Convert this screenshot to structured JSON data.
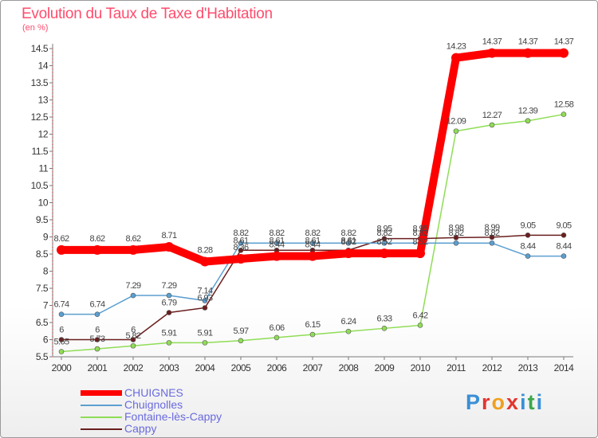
{
  "header": {
    "title": "Evolution du Taux de Taxe d'Habitation",
    "unit": "(en %)"
  },
  "logo": {
    "text": "Proxiti",
    "colors": [
      "#3a8fd6",
      "#e3342f",
      "#f0a020",
      "#e3342f",
      "#3a8fd6",
      "#3aa84a",
      "#3a8fd6"
    ]
  },
  "chart_data": {
    "type": "line",
    "x": [
      "2000",
      "2001",
      "2002",
      "2003",
      "2004",
      "2005",
      "2006",
      "2007",
      "2008",
      "2009",
      "2010",
      "2011",
      "2012",
      "2013",
      "2014"
    ],
    "ylim": [
      5.5,
      14.5
    ],
    "yticks": [
      "5.5",
      "6",
      "6.5",
      "7",
      "7.5",
      "8",
      "8.5",
      "9",
      "9.5",
      "10",
      "10.5",
      "11",
      "11.5",
      "12",
      "12.5",
      "13",
      "13.5",
      "14",
      "14.5"
    ],
    "grid": false,
    "legend": "bottom-left",
    "series": [
      {
        "name": "CHUIGNES",
        "color": "#ff0000",
        "values": [
          8.62,
          8.62,
          8.62,
          8.71,
          8.28,
          8.36,
          8.44,
          8.44,
          8.52,
          8.52,
          8.52,
          14.23,
          14.37,
          14.37,
          14.37
        ],
        "labels": [
          "8.62",
          "8.62",
          "8.62",
          "8.71",
          "8.28",
          "8.36",
          "8.44",
          "8.44",
          "8.52",
          "8.52",
          "8.52",
          "14.23",
          "14.37",
          "14.37",
          "14.37"
        ]
      },
      {
        "name": "Chuignolles",
        "color": "#5b9fd0",
        "values": [
          6.74,
          6.74,
          7.29,
          7.29,
          7.14,
          8.82,
          8.82,
          8.82,
          8.82,
          8.82,
          8.82,
          8.82,
          8.82,
          8.44,
          8.44
        ],
        "labels": [
          "6.74",
          "6.74",
          "7.29",
          "7.29",
          "7.14",
          "8.82",
          "8.82",
          "8.82",
          "8.82",
          "8.82",
          "8.82",
          "8.82",
          "8.82",
          "8.44",
          "8.44"
        ]
      },
      {
        "name": "Fontaine-lès-Cappy",
        "color": "#8fdd55",
        "values": [
          5.65,
          5.73,
          5.82,
          5.91,
          5.91,
          5.97,
          6.06,
          6.15,
          6.24,
          6.33,
          6.42,
          12.09,
          12.27,
          12.39,
          12.58
        ],
        "labels": [
          "5.65",
          "5.73",
          "5.82",
          "5.91",
          "5.91",
          "5.97",
          "6.06",
          "6.15",
          "6.24",
          "6.33",
          "6.42",
          "12.09",
          "12.27",
          "12.39",
          "12.58"
        ]
      },
      {
        "name": "Cappy",
        "color": "#6b1e1e",
        "values": [
          6.0,
          6.0,
          6.0,
          6.79,
          6.93,
          8.61,
          8.61,
          8.61,
          8.61,
          8.95,
          8.95,
          8.98,
          8.99,
          9.05,
          9.05
        ],
        "labels": [
          "6",
          "6",
          "6",
          "6.79",
          "6.93",
          "8.61",
          "8.61",
          "8.61",
          "8.61",
          "8.95",
          "8.95",
          "8.98",
          "8.99",
          "9.05",
          "9.05"
        ]
      }
    ]
  }
}
